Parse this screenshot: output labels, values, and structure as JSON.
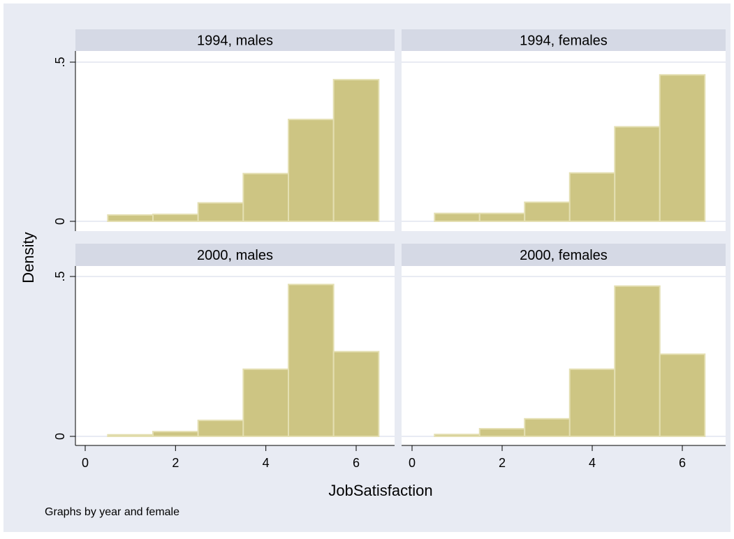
{
  "colors": {
    "frame_border": "#ffffff",
    "background": "#e8ebf3",
    "plot_background": "#ffffff",
    "strip": "#d5d9e5",
    "gridline": "#e8ebf3",
    "bar_fill": "#cdc583",
    "bar_stroke": "#e4dfb2",
    "axis": "#000000",
    "text": "#000000"
  },
  "chart_data": {
    "type": "bar",
    "layout": "2x2 panels by year and female",
    "ylabel": "Density",
    "xlabel": "JobSatisfaction",
    "note": "Graphs by year and female",
    "xlim": [
      0,
      6.5
    ],
    "ylim": [
      0,
      0.5
    ],
    "x_ticks": [
      0,
      2,
      4,
      6
    ],
    "y_ticks": [
      0,
      0.5
    ],
    "x_tick_labels": [
      "0",
      "2",
      "4",
      "6"
    ],
    "y_tick_labels": [
      "0",
      ".5"
    ],
    "bin_width": 1,
    "bin_centers": [
      1,
      2,
      3,
      4,
      5,
      6
    ],
    "grid": true,
    "panels": [
      {
        "title": "1994, males",
        "values": [
          0.02,
          0.022,
          0.058,
          0.15,
          0.32,
          0.445
        ]
      },
      {
        "title": "1994, females",
        "values": [
          0.025,
          0.025,
          0.06,
          0.152,
          0.297,
          0.46
        ]
      },
      {
        "title": "2000, males",
        "values": [
          0.005,
          0.015,
          0.05,
          0.21,
          0.475,
          0.265
        ]
      },
      {
        "title": "2000, females",
        "values": [
          0.006,
          0.024,
          0.055,
          0.21,
          0.47,
          0.257
        ]
      }
    ]
  }
}
